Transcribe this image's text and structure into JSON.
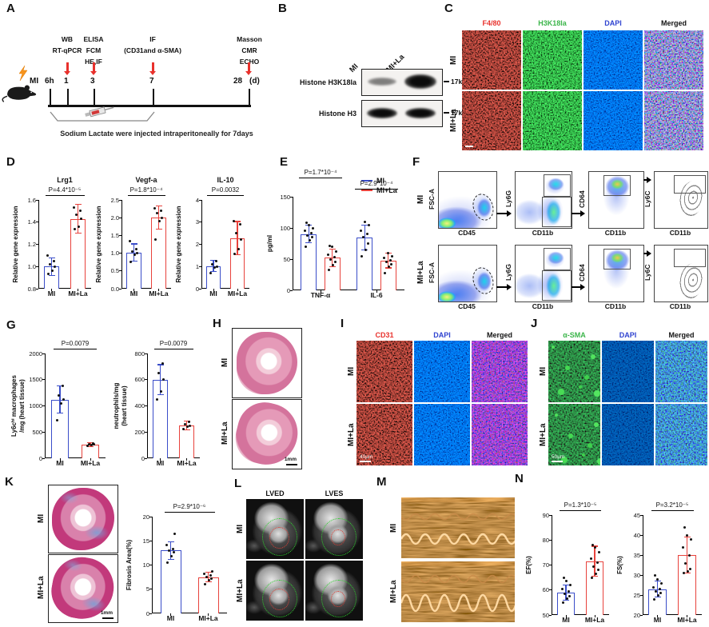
{
  "colors": {
    "mi": "#3a4dc9",
    "mi_la": "#e8423c",
    "label_red": "#e8322d",
    "label_green": "#3bb54a",
    "label_blue": "#2f43d0",
    "arrow": "#e8312c",
    "lightning": "#f7941d"
  },
  "panel_a": {
    "label": "A",
    "subject": "MI",
    "start": "6h",
    "day_unit": "(d)",
    "events": [
      {
        "day": "1",
        "lines": [
          "WB",
          "RT-qPCR"
        ]
      },
      {
        "day": "3",
        "lines": [
          "ELISA",
          "FCM",
          "HE,IF"
        ]
      },
      {
        "day": "7",
        "lines": [
          "IF",
          "(CD31and α-SMA)"
        ]
      },
      {
        "day": "28",
        "lines": [
          "Masson",
          "CMR",
          "ECHO"
        ]
      }
    ],
    "note": "Sodium Lactate were injected intraperitoneally for 7days"
  },
  "panel_b": {
    "label": "B",
    "lanes": [
      "MI",
      "MI+La"
    ],
    "rows": [
      {
        "name": "Histone H3K18la",
        "mw": "17kDa"
      },
      {
        "name": "Histone H3",
        "mw": "17kDa"
      }
    ]
  },
  "panel_c": {
    "label": "C",
    "columns": [
      "F4/80",
      "H3K18la",
      "DAPI",
      "Merged"
    ],
    "rows": [
      "MI",
      "MI+La"
    ]
  },
  "panel_d": {
    "label": "D"
  },
  "panel_e": {
    "label": "E",
    "legend": [
      "MI",
      "MI+La"
    ]
  },
  "panel_f": {
    "label": "F",
    "rows": [
      "MI",
      "MI+La"
    ],
    "y_axes": [
      "FSC-A",
      "Ly6G",
      "CD64",
      "Ly6C"
    ],
    "x_axes": [
      "CD45",
      "CD11b",
      "CD11b",
      "CD11b"
    ]
  },
  "panel_g": {
    "label": "G"
  },
  "panel_h": {
    "label": "H",
    "rows": [
      "MI",
      "MI+La"
    ],
    "scale": "1mm"
  },
  "panel_i": {
    "label": "I",
    "columns": [
      "CD31",
      "DAPI",
      "Merged"
    ],
    "rows": [
      "MI",
      "MI+La"
    ],
    "scale": "40µm"
  },
  "panel_j": {
    "label": "J",
    "columns": [
      "α-SMA",
      "DAPI",
      "Merged"
    ],
    "rows": [
      "MI",
      "MI+La"
    ],
    "scale": "50µm"
  },
  "panel_k": {
    "label": "K",
    "rows": [
      "MI",
      "MI+La"
    ],
    "scale": "1mm"
  },
  "panel_l": {
    "label": "L",
    "columns": [
      "LVED",
      "LVES"
    ],
    "rows": [
      "MI",
      "MI+La"
    ]
  },
  "panel_m": {
    "label": "M",
    "rows": [
      "MI",
      "MI+La"
    ]
  },
  "panel_n": {
    "label": "N"
  },
  "chart_data": [
    {
      "id": "lrg1",
      "type": "bar",
      "title": "Lrg1",
      "p": "P=4.4*10⁻⁵",
      "ylabel": "Relative gene expression",
      "ymin": 0.8,
      "ymax": 1.6,
      "yticks": [
        "0.8",
        "1.0",
        "1.2",
        "1.4",
        "1.6"
      ],
      "categories": [
        "MI",
        "MI+La"
      ],
      "values": [
        1.0,
        1.43
      ],
      "errors": [
        0.08,
        0.13
      ],
      "dots": [
        [
          0.93,
          0.96,
          1.0,
          1.02,
          1.05,
          1.1
        ],
        [
          1.34,
          1.36,
          1.43,
          1.47,
          1.5,
          1.53
        ]
      ]
    },
    {
      "id": "vegfa",
      "type": "bar",
      "title": "Vegf-a",
      "p": "P=1.8*10⁻⁴",
      "ylabel": "Relative gene expression",
      "ymin": 0,
      "ymax": 2.5,
      "yticks": [
        "0.0",
        "0.5",
        "1.0",
        "1.5",
        "2.0",
        "2.5"
      ],
      "categories": [
        "MI",
        "MI+La"
      ],
      "values": [
        1.02,
        2.0
      ],
      "errors": [
        0.24,
        0.33
      ],
      "dots": [
        [
          0.75,
          0.95,
          1.0,
          1.05,
          1.12,
          1.35
        ],
        [
          1.38,
          1.9,
          2.0,
          2.12,
          2.2,
          2.27
        ]
      ]
    },
    {
      "id": "il10",
      "type": "bar",
      "title": "IL-10",
      "p": "P=0.0032",
      "ylabel": "Relative gene expression",
      "ymin": 0,
      "ymax": 4,
      "yticks": [
        "0",
        "1",
        "2",
        "3",
        "4"
      ],
      "categories": [
        "MI",
        "MI+La"
      ],
      "values": [
        1.02,
        2.28
      ],
      "errors": [
        0.25,
        0.75
      ],
      "dots": [
        [
          0.7,
          0.95,
          1.0,
          1.1,
          1.25
        ],
        [
          1.55,
          1.8,
          2.2,
          2.5,
          2.9,
          3.05
        ]
      ]
    },
    {
      "id": "cytokines",
      "type": "grouped",
      "ylabel": "pg/ml",
      "ymin": 0,
      "ymax": 150,
      "yticks": [
        "0",
        "50",
        "100",
        "150"
      ],
      "categories": [
        "TNF-α",
        "IL-6"
      ],
      "p": [
        "P=1.7*10⁻⁴",
        "P=2.9*10⁻⁴"
      ],
      "series": [
        {
          "name": "MI",
          "values": [
            90,
            85
          ],
          "errors": [
            14,
            20
          ],
          "dots": [
            [
              70,
              80,
              85,
              88,
              92,
              95,
              100,
              104,
              108
            ],
            [
              55,
              65,
              75,
              85,
              90,
              95,
              104,
              110
            ]
          ]
        },
        {
          "name": "MI+La",
          "values": [
            52,
            48
          ],
          "errors": [
            14,
            12
          ],
          "dots": [
            [
              33,
              40,
              45,
              50,
              53,
              57,
              62,
              70,
              71
            ],
            [
              28,
              38,
              42,
              45,
              48,
              52,
              55,
              60
            ]
          ]
        }
      ]
    },
    {
      "id": "ly6c",
      "type": "bar",
      "p": "P=0.0079",
      "ylabel": "Ly6cʰⁱ macrophages\n/mg (heart tissue)",
      "ymin": 0,
      "ymax": 2000,
      "yticks": [
        "0",
        "500",
        "1000",
        "1500",
        "2000"
      ],
      "categories": [
        "MI",
        "MI+La"
      ],
      "values": [
        1120,
        260
      ],
      "errors": [
        260,
        35
      ],
      "dots": [
        [
          720,
          1050,
          1120,
          1200,
          1380
        ],
        [
          235,
          250,
          260,
          268,
          278
        ]
      ]
    },
    {
      "id": "neutrophils",
      "type": "bar",
      "p": "P=0.0079",
      "ylabel": "neutrophils/mg\n(heart tissue)",
      "ymin": 0,
      "ymax": 800,
      "yticks": [
        "0",
        "200",
        "400",
        "600",
        "800"
      ],
      "categories": [
        "MI",
        "MI+La"
      ],
      "values": [
        600,
        250
      ],
      "errors": [
        115,
        35
      ],
      "dots": [
        [
          450,
          510,
          600,
          650,
          725
        ],
        [
          225,
          240,
          250,
          262,
          275
        ]
      ]
    },
    {
      "id": "fibrosis",
      "type": "bar",
      "p": "P=2.9*10⁻⁶",
      "ylabel": "Fibrosis Area(%)",
      "ymin": 0,
      "ymax": 20,
      "yticks": [
        "0",
        "5",
        "10",
        "15",
        "20"
      ],
      "categories": [
        "MI",
        "MI+La"
      ],
      "values": [
        13,
        7.5
      ],
      "errors": [
        1.8,
        1.0
      ],
      "dots": [
        [
          10.5,
          11.8,
          12.6,
          13,
          13.3,
          14.2,
          16.5
        ],
        [
          6.1,
          6.8,
          7.2,
          7.5,
          7.8,
          8.1,
          8.6
        ]
      ]
    },
    {
      "id": "ef",
      "type": "bar",
      "p": "P=1.3*10⁻⁵",
      "ylabel": "EF(%)",
      "ymin": 50,
      "ymax": 90,
      "yticks": [
        "50",
        "60",
        "70",
        "80",
        "90"
      ],
      "categories": [
        "MI",
        "MI+La"
      ],
      "values": [
        59,
        71.5
      ],
      "errors": [
        3,
        6
      ],
      "dots": [
        [
          55,
          56.5,
          57.5,
          58.5,
          59.5,
          60.5,
          62,
          63.5,
          65
        ],
        [
          65,
          66.5,
          68,
          69.5,
          71,
          72.5,
          75,
          77,
          78
        ]
      ]
    },
    {
      "id": "fs",
      "type": "bar",
      "p": "P=3.2*10⁻⁵",
      "ylabel": "FS(%)",
      "ymin": 20,
      "ymax": 45,
      "yticks": [
        "20",
        "25",
        "30",
        "35",
        "40",
        "45"
      ],
      "categories": [
        "MI",
        "MI+La"
      ],
      "values": [
        26.5,
        35
      ],
      "errors": [
        2,
        4.5
      ],
      "dots": [
        [
          24,
          25,
          25.5,
          26,
          26.5,
          27,
          28,
          29,
          30
        ],
        [
          30.5,
          31,
          31.5,
          33,
          35,
          37,
          39,
          40,
          42
        ]
      ]
    }
  ]
}
